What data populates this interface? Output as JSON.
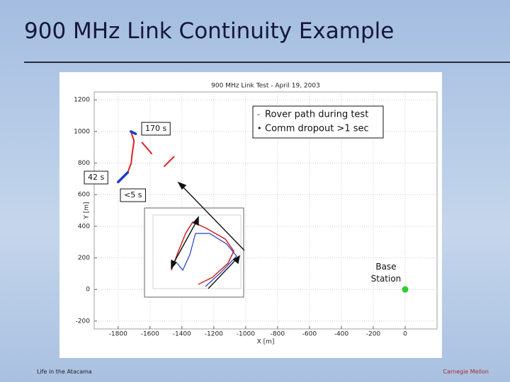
{
  "slide": {
    "title": "900 MHz Link Continuity Example",
    "footer_left": "Life in the Atacama",
    "footer_right": "Carnegie Mellon"
  },
  "chart_data": {
    "type": "line",
    "title": "900 MHz Link Test - April 19, 2003",
    "xlabel": "X [m]",
    "ylabel": "Y [m]",
    "xlim": [
      -1950,
      200
    ],
    "ylim": [
      -250,
      1250
    ],
    "xticks": [
      -1800,
      -1600,
      -1400,
      -1200,
      -1000,
      -800,
      -600,
      -400,
      -200,
      0
    ],
    "yticks": [
      -200,
      0,
      200,
      400,
      600,
      800,
      1000,
      1200
    ],
    "grid": true,
    "series": [
      {
        "name": "Rover path during test",
        "color": "#e02020",
        "marker": "-",
        "x": [
          -1720,
          -1700,
          -1712,
          -1718,
          -1740,
          null,
          -1650,
          -1590,
          null,
          -1510,
          -1450
        ],
        "values": [
          1000,
          940,
          860,
          800,
          740,
          null,
          930,
          860,
          null,
          780,
          840
        ]
      },
      {
        "name": "Comm dropout >1 sec",
        "color": "#1c3cc8",
        "marker": "•",
        "x": [
          -1720,
          -1690,
          null,
          -1740,
          -1800
        ],
        "values": [
          1000,
          985,
          null,
          740,
          680
        ]
      }
    ],
    "base_station": {
      "label": "Base Station",
      "x": 0,
      "y": 0,
      "color": "#2ecc2e"
    },
    "annotations": [
      "170 s",
      "42 s",
      "<5 s"
    ]
  }
}
